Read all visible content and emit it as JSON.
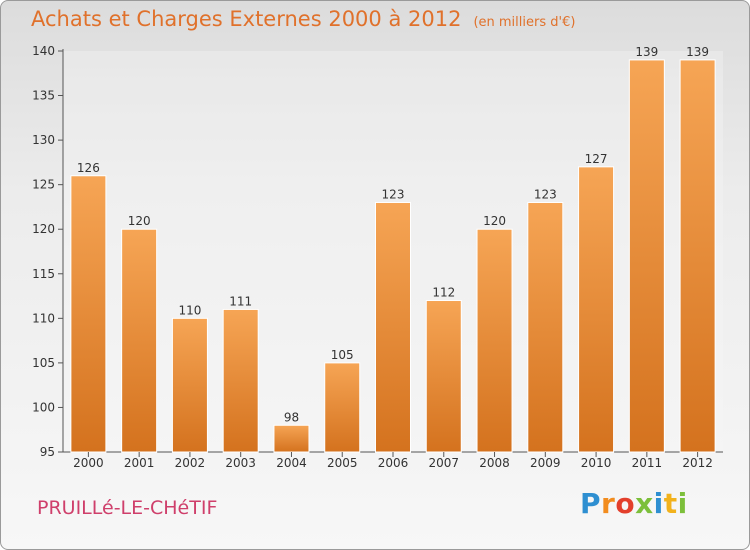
{
  "chart_data": {
    "type": "bar",
    "title": "Achats et Charges Externes 2000 à 2012",
    "subtitle": "(en milliers d'€)",
    "categories": [
      "2000",
      "2001",
      "2002",
      "2003",
      "2004",
      "2005",
      "2006",
      "2007",
      "2008",
      "2009",
      "2010",
      "2011",
      "2012"
    ],
    "values": [
      126,
      120,
      110,
      111,
      98,
      105,
      123,
      112,
      120,
      123,
      127,
      139,
      139
    ],
    "ylim": [
      95,
      140
    ],
    "yticks": [
      95,
      100,
      105,
      110,
      115,
      120,
      125,
      130,
      135,
      140
    ],
    "grid": false,
    "bar_color": "#f0913c",
    "title_color": "#e0712b"
  },
  "footer": {
    "commune": "PRUILLé-LE-CHéTIF",
    "commune_color": "#cf3f6b",
    "brand": "Proxiti",
    "brand_colors": [
      "#2e8fd1",
      "#f28c1e",
      "#e33f2c",
      "#7cbf3a",
      "#2e8fd1",
      "#f2b21c",
      "#7cbf3a"
    ]
  }
}
